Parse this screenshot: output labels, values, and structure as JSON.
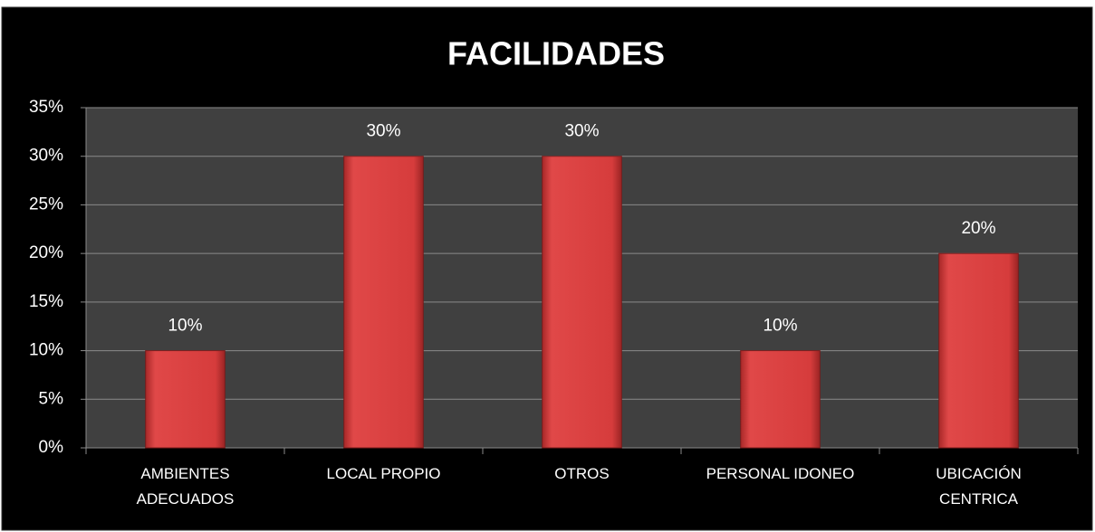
{
  "chart_data": {
    "type": "bar",
    "title": "FACILIDADES",
    "categories": [
      "AMBIENTES ADECUADOS",
      "LOCAL PROPIO",
      "OTROS",
      "PERSONAL IDONEO",
      "UBICACIÓN CENTRICA"
    ],
    "values": [
      10,
      30,
      30,
      10,
      20
    ],
    "value_labels": [
      "10%",
      "30%",
      "30%",
      "10%",
      "20%"
    ],
    "color": "#d63c3c",
    "ylim": [
      0,
      35
    ],
    "yticks": [
      {
        "value": 0,
        "label": "0%"
      },
      {
        "value": 5,
        "label": "5%"
      },
      {
        "value": 10,
        "label": "10%"
      },
      {
        "value": 15,
        "label": "15%"
      },
      {
        "value": 20,
        "label": "20%"
      },
      {
        "value": 25,
        "label": "25%"
      },
      {
        "value": 30,
        "label": "30%"
      },
      {
        "value": 35,
        "label": "35%"
      }
    ],
    "grid": true
  }
}
